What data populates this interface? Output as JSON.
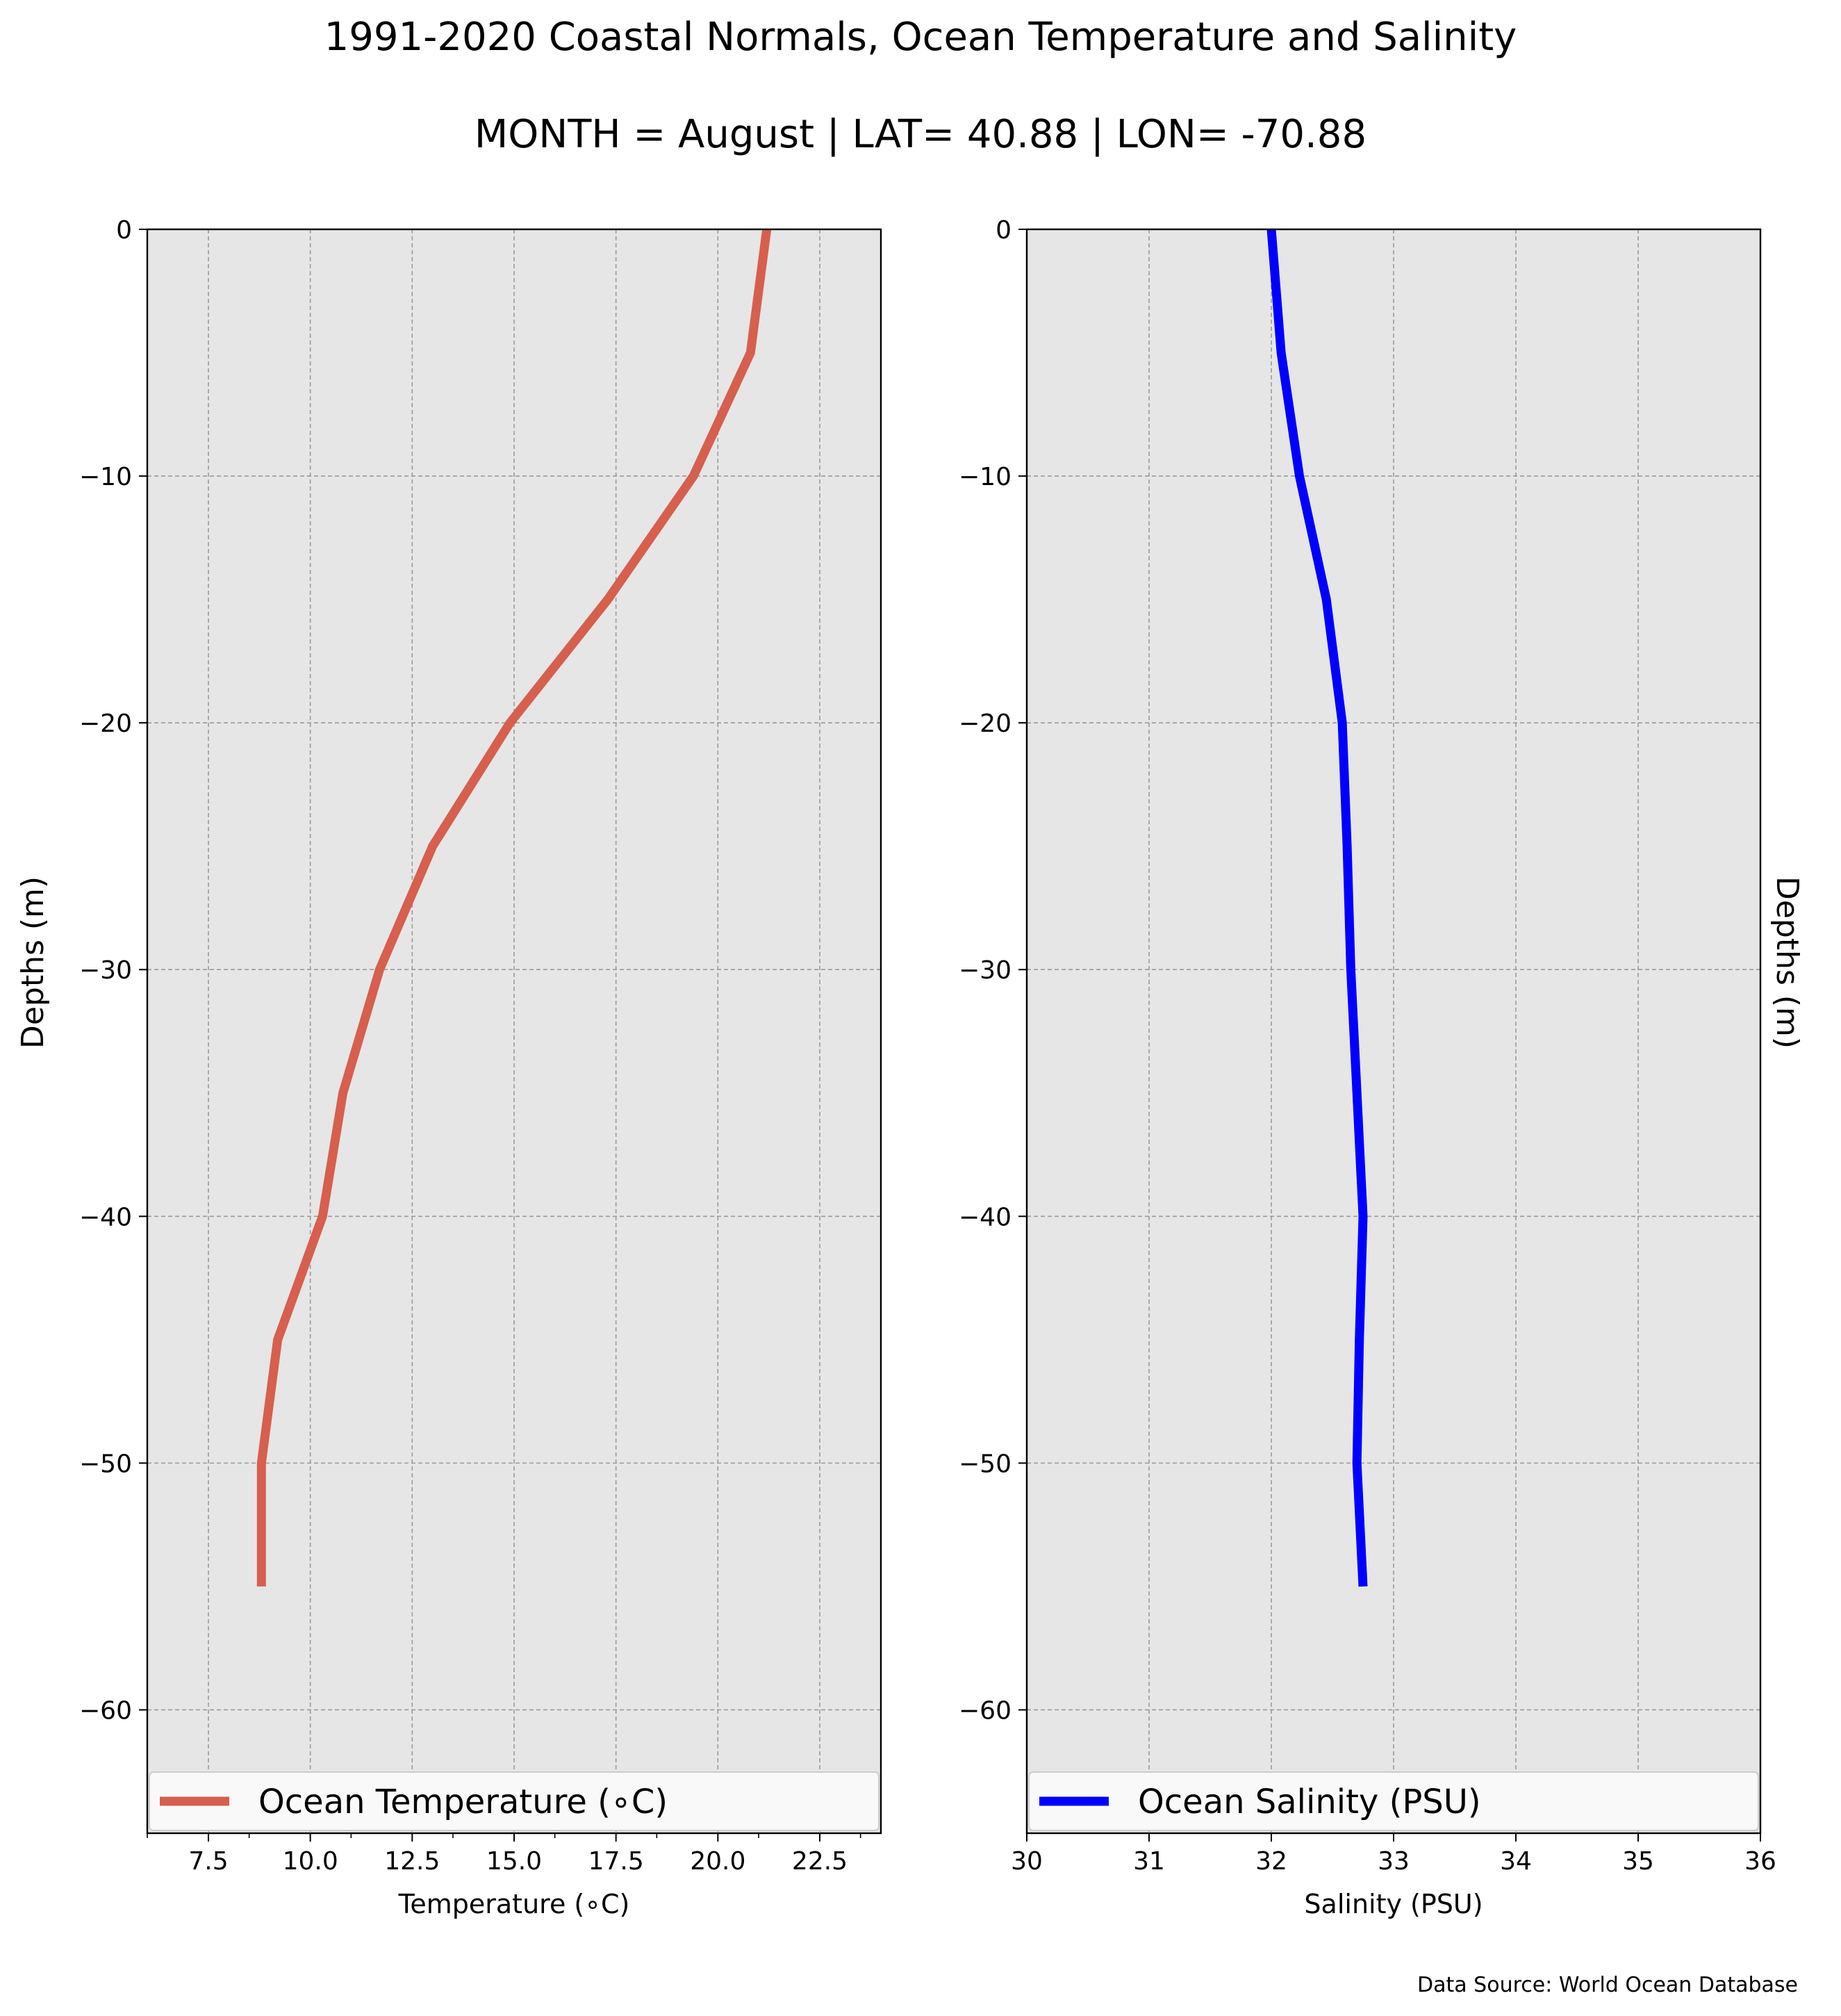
{
  "figure": {
    "title_line1": "1991-2020 Coastal Normals, Ocean Temperature and Salinity",
    "title_line2": "MONTH = August | LAT= 40.88 | LON= -70.88",
    "source": "Data Source: World Ocean Database",
    "background": "#e6e6e6",
    "grid_color": "#9a9a9a"
  },
  "chart_data": [
    {
      "type": "line",
      "title": "",
      "xlabel": "Temperature ($^\\circ$C)",
      "xlabel_display": "Temperature (∘C)",
      "ylabel": "Depths (m)",
      "xlim": [
        6.0,
        24.0
      ],
      "ylim": [
        -65,
        0
      ],
      "xticks": [
        7.5,
        10.0,
        12.5,
        15.0,
        17.5,
        20.0,
        22.5
      ],
      "xtick_labels": [
        "7.5",
        "10.0",
        "12.5",
        "15.0",
        "17.5",
        "20.0",
        "22.5"
      ],
      "xminor": [
        6.0,
        8.5,
        11.0,
        13.5,
        16.0,
        18.5,
        21.0,
        23.5
      ],
      "yticks": [
        0,
        -10,
        -20,
        -30,
        -40,
        -50,
        -60
      ],
      "ytick_labels": [
        "0",
        "−10",
        "−20",
        "−30",
        "−40",
        "−50",
        "−60"
      ],
      "grid": true,
      "legend_position": "bottom",
      "series": [
        {
          "name": "Ocean Temperature ($^\\circ$C)",
          "legend_display": "Ocean Temperature (∘C)",
          "color": "#d65f4e",
          "x": [
            21.2,
            20.8,
            19.4,
            17.3,
            14.9,
            13.0,
            11.7,
            10.8,
            10.3,
            9.2,
            8.8,
            8.8
          ],
          "y": [
            0,
            -5,
            -10,
            -15,
            -20,
            -25,
            -30,
            -35,
            -40,
            -45,
            -50,
            -55
          ]
        }
      ]
    },
    {
      "type": "line",
      "title": "",
      "xlabel": "Salinity (PSU)",
      "ylabel": "Depths (m)",
      "xlim": [
        30,
        36
      ],
      "ylim": [
        -65,
        0
      ],
      "xticks": [
        30,
        31,
        32,
        33,
        34,
        35,
        36
      ],
      "xtick_labels": [
        "30",
        "31",
        "32",
        "33",
        "34",
        "35",
        "36"
      ],
      "yticks": [
        0,
        -10,
        -20,
        -30,
        -40,
        -50,
        -60
      ],
      "ytick_labels": [
        "0",
        "−10",
        "−20",
        "−30",
        "−40",
        "−50",
        "−60"
      ],
      "grid": true,
      "legend_position": "bottom",
      "series": [
        {
          "name": "Ocean Salinity (PSU)",
          "color": "#0000ff",
          "x": [
            32.0,
            32.08,
            32.23,
            32.45,
            32.58,
            32.62,
            32.65,
            32.7,
            32.75,
            32.72,
            32.7,
            32.75
          ],
          "y": [
            0,
            -5,
            -10,
            -15,
            -20,
            -25,
            -30,
            -35,
            -40,
            -45,
            -50,
            -55
          ]
        }
      ]
    }
  ]
}
